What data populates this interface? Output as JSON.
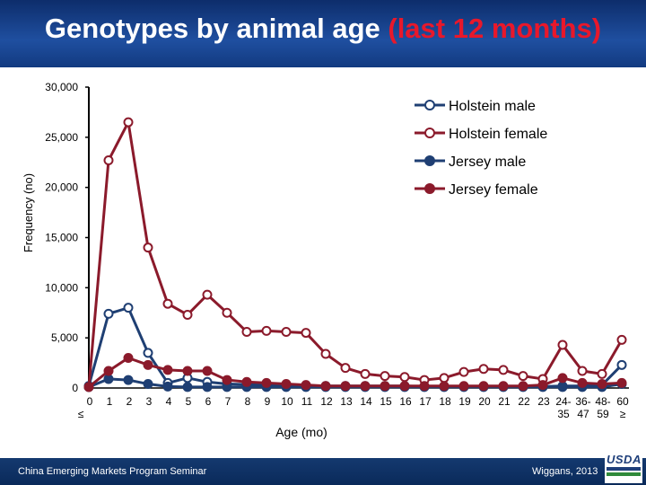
{
  "slide": {
    "title_main": "Genotypes by animal age ",
    "title_highlight": "(last 12 months)",
    "footer_left": "China Emerging Markets Program Seminar",
    "footer_right": "Wiggans, 2013",
    "logo_text": "USDA"
  },
  "chart_data": {
    "type": "line",
    "title": "",
    "xlabel": "Age (mo)",
    "ylabel": "Frequency (no)",
    "ylim": [
      0,
      30000
    ],
    "yticks": [
      0,
      5000,
      10000,
      15000,
      20000,
      25000,
      30000
    ],
    "ytick_labels": [
      "0",
      "5,000",
      "10,000",
      "15,000",
      "20,000",
      "25,000",
      "30,000"
    ],
    "categories": [
      "0",
      "1",
      "2",
      "3",
      "4",
      "5",
      "6",
      "7",
      "8",
      "9",
      "10",
      "11",
      "12",
      "13",
      "14",
      "15",
      "16",
      "17",
      "18",
      "19",
      "20",
      "21",
      "22",
      "23",
      "24-35",
      "36-47",
      "48-59",
      "60"
    ],
    "category_labels": [
      [
        "0",
        "≤"
      ],
      [
        "1"
      ],
      [
        "2"
      ],
      [
        "3"
      ],
      [
        "4"
      ],
      [
        "5"
      ],
      [
        "6"
      ],
      [
        "7"
      ],
      [
        "8"
      ],
      [
        "9"
      ],
      [
        "10"
      ],
      [
        "11"
      ],
      [
        "12"
      ],
      [
        "13"
      ],
      [
        "14"
      ],
      [
        "15"
      ],
      [
        "16"
      ],
      [
        "17"
      ],
      [
        "18"
      ],
      [
        "19"
      ],
      [
        "20"
      ],
      [
        "21"
      ],
      [
        "22"
      ],
      [
        "23"
      ],
      [
        "24-",
        "35"
      ],
      [
        "36-",
        "47"
      ],
      [
        "48-",
        "59"
      ],
      [
        "60",
        "≥"
      ]
    ],
    "legend_position": "top-right",
    "series": [
      {
        "name": "Holstein male",
        "color": "#1f3f73",
        "marker": "open",
        "values": [
          200,
          7400,
          8000,
          3500,
          500,
          1000,
          600,
          400,
          350,
          300,
          300,
          250,
          200,
          200,
          200,
          200,
          200,
          150,
          150,
          150,
          150,
          150,
          150,
          150,
          200,
          200,
          300,
          2300
        ]
      },
      {
        "name": "Holstein female",
        "color": "#8b1a2b",
        "marker": "open",
        "values": [
          100,
          22700,
          26500,
          14000,
          8400,
          7300,
          9300,
          7500,
          5600,
          5700,
          5600,
          5500,
          3400,
          2000,
          1400,
          1200,
          1100,
          800,
          1000,
          1600,
          1900,
          1800,
          1200,
          900,
          4300,
          1700,
          1400,
          4800
        ]
      },
      {
        "name": "Jersey male",
        "color": "#1f3f73",
        "marker": "filled",
        "values": [
          100,
          900,
          800,
          400,
          150,
          100,
          100,
          100,
          100,
          100,
          100,
          100,
          100,
          100,
          100,
          100,
          100,
          100,
          100,
          100,
          100,
          100,
          100,
          100,
          100,
          100,
          100,
          400
        ]
      },
      {
        "name": "Jersey female",
        "color": "#8b1a2b",
        "marker": "filled",
        "values": [
          100,
          1700,
          3000,
          2300,
          1800,
          1700,
          1700,
          800,
          600,
          500,
          400,
          300,
          200,
          200,
          200,
          200,
          200,
          200,
          200,
          200,
          200,
          200,
          200,
          300,
          1000,
          500,
          400,
          500
        ]
      }
    ]
  }
}
